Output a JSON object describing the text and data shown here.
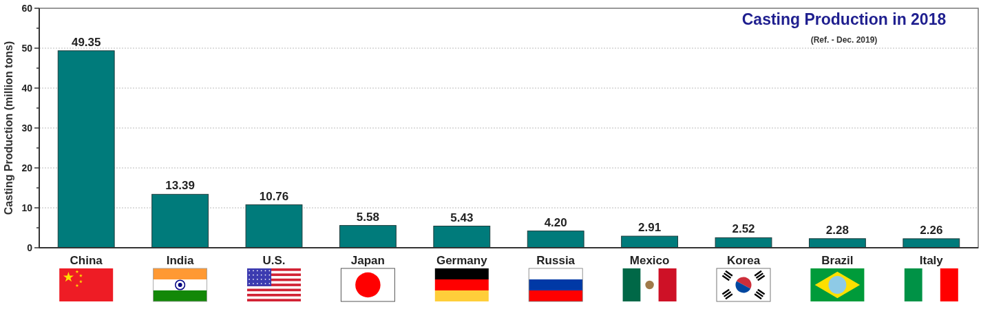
{
  "chart_data": {
    "type": "bar",
    "title": "Casting Production in 2018",
    "subtitle": "(Ref. - Dec. 2019)",
    "ylabel": "Casting Production (million tons)",
    "categories": [
      "China",
      "India",
      "U.S.",
      "Japan",
      "Germany",
      "Russia",
      "Mexico",
      "Korea",
      "Brazil",
      "Italy"
    ],
    "values": [
      49.35,
      13.39,
      10.76,
      5.58,
      5.43,
      4.2,
      2.91,
      2.52,
      2.28,
      2.26
    ],
    "value_labels": [
      "49.35",
      "13.39",
      "10.76",
      "5.58",
      "5.43",
      "4.20",
      "2.91",
      "2.52",
      "2.28",
      "2.26"
    ],
    "color": "#007b7b",
    "ylim": [
      0,
      60
    ],
    "yticks": [
      0,
      {
        "value": 5,
        "label": null
      },
      10,
      {
        "value": 15,
        "label": null
      },
      20,
      {
        "value": 25,
        "label": null
      },
      30,
      {
        "value": 35,
        "label": null
      },
      40,
      {
        "value": 45,
        "label": null
      },
      50,
      {
        "value": 55,
        "label": null
      },
      60
    ],
    "grid": "y"
  }
}
